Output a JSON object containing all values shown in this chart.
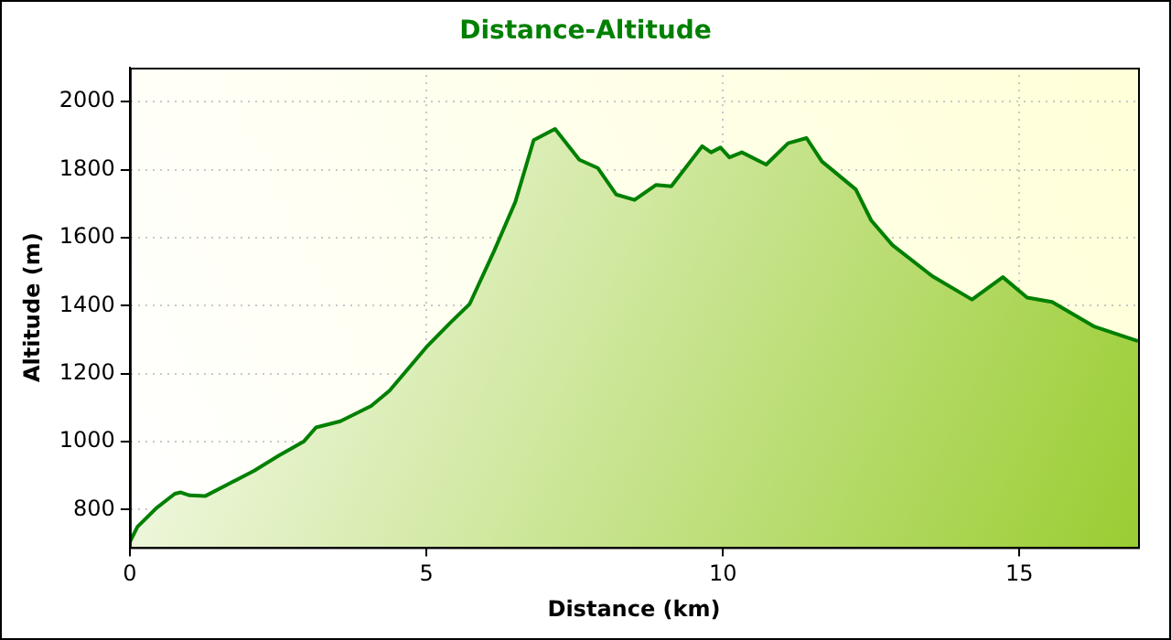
{
  "chart_data": {
    "type": "area",
    "title": "Distance-Altitude",
    "xlabel": "Distance (km)",
    "ylabel": "Altitude (m)",
    "xlim": [
      0,
      17
    ],
    "xticks": [
      0,
      5,
      10,
      15
    ],
    "ylim": [
      690,
      2100
    ],
    "yticks": [
      800,
      1000,
      1200,
      1400,
      1600,
      1800,
      2000
    ],
    "grid": true,
    "legend": false,
    "series": [
      {
        "color": "#008000",
        "x": [
          0,
          0.13,
          0.45,
          0.76,
          0.86,
          1.01,
          1.27,
          1.69,
          2.1,
          2.52,
          2.93,
          3.14,
          3.55,
          4.07,
          4.38,
          5,
          5.41,
          5.73,
          6.14,
          6.5,
          6.81,
          7.17,
          7.58,
          7.89,
          8.2,
          8.51,
          8.87,
          9.13,
          9.65,
          9.8,
          9.96,
          10.11,
          10.32,
          10.73,
          11.1,
          11.41,
          11.67,
          12.24,
          12.5,
          12.86,
          13.53,
          14.2,
          14.72,
          15.13,
          15.55,
          16.27,
          17
        ],
        "values": [
          705,
          750,
          805,
          847,
          851,
          842,
          840,
          878,
          915,
          960,
          1000,
          1042,
          1060,
          1105,
          1150,
          1278,
          1351,
          1405,
          1560,
          1705,
          1887,
          1920,
          1829,
          1805,
          1727,
          1711,
          1755,
          1751,
          1869,
          1851,
          1865,
          1836,
          1851,
          1815,
          1878,
          1893,
          1824,
          1742,
          1651,
          1578,
          1487,
          1418,
          1484,
          1424,
          1411,
          1338,
          1296
        ]
      }
    ]
  }
}
